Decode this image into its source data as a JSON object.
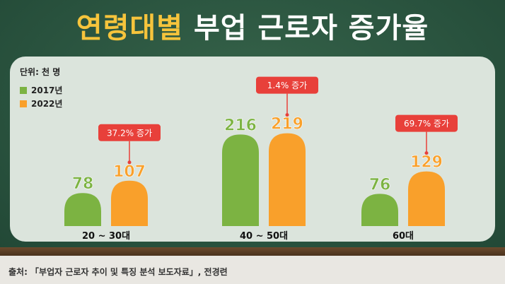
{
  "title": {
    "highlight": "연령대별",
    "rest": "부업 근로자 증가율"
  },
  "unit_label": "단위: 천 명",
  "colors": {
    "series_2017": "#7cb342",
    "series_2022": "#f9a02b",
    "callout": "#e8403a"
  },
  "chart_data": {
    "type": "bar",
    "categories": [
      "20 ~ 30대",
      "40 ~ 50대",
      "60대"
    ],
    "series": [
      {
        "name": "2017년",
        "values": [
          78,
          216,
          76
        ]
      },
      {
        "name": "2022년",
        "values": [
          107,
          219,
          129
        ]
      }
    ],
    "annotations": [
      "37.2% 증가",
      "1.4% 증가",
      "69.7% 증가"
    ],
    "title": "연령대별 부업 근로자 증가율",
    "ylabel": "단위: 천 명",
    "legend": "top-left",
    "grid": false
  },
  "footer": "출처: 「부업자 근로자 추이 및 특징 분석 보도자료」, 전경련"
}
